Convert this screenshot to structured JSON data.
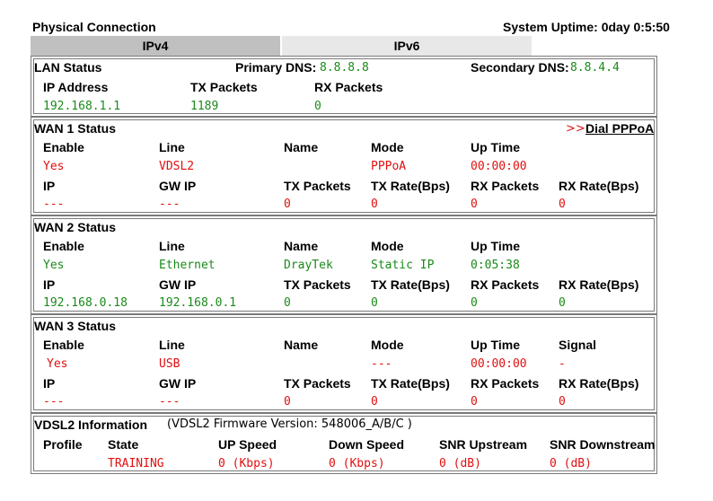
{
  "header": {
    "title": "Physical Connection",
    "uptime": "System Uptime: 0day 0:5:50"
  },
  "tabs": [
    {
      "label": "IPv4",
      "active": true
    },
    {
      "label": "IPv6",
      "active": false
    }
  ],
  "lan": {
    "title": "LAN Status",
    "primary_dns_label": "Primary DNS:",
    "primary_dns": "8.8.8.8",
    "secondary_dns_label": "Secondary DNS:",
    "secondary_dns": "8.8.4.4",
    "headers": [
      "IP Address",
      "TX Packets",
      "RX Packets"
    ],
    "values": [
      "192.168.1.1",
      "1189",
      "0"
    ]
  },
  "wan1": {
    "title": "WAN 1 Status",
    "dial_prefix": ">>",
    "dial_link": "Dial PPPoA",
    "row1_headers": [
      "Enable",
      "Line",
      "Name",
      "Mode",
      "Up Time"
    ],
    "row1_values": [
      "Yes",
      "VDSL2",
      "",
      "PPPoA",
      "00:00:00"
    ],
    "row2_headers": [
      "IP",
      "GW IP",
      "TX Packets",
      "TX Rate(Bps)",
      "RX Packets",
      "RX Rate(Bps)"
    ],
    "row2_values": [
      "---",
      "---",
      "0",
      "0",
      "0",
      "0"
    ]
  },
  "wan2": {
    "title": "WAN 2 Status",
    "row1_headers": [
      "Enable",
      "Line",
      "Name",
      "Mode",
      "Up Time"
    ],
    "row1_values": [
      "Yes",
      "Ethernet",
      "DrayTek",
      "Static IP",
      "0:05:38"
    ],
    "row2_headers": [
      "IP",
      "GW IP",
      "TX Packets",
      "TX Rate(Bps)",
      "RX Packets",
      "RX Rate(Bps)"
    ],
    "row2_values": [
      "192.168.0.18",
      "192.168.0.1",
      "0",
      "0",
      "0",
      "0"
    ]
  },
  "wan3": {
    "title": "WAN 3 Status",
    "row1_headers": [
      "Enable",
      "Line",
      "Name",
      "Mode",
      "Up Time",
      "Signal"
    ],
    "row1_values": [
      "Yes",
      "USB",
      "",
      "---",
      "00:00:00",
      "-"
    ],
    "row2_headers": [
      "IP",
      "GW IP",
      "TX Packets",
      "TX Rate(Bps)",
      "RX Packets",
      "RX Rate(Bps)"
    ],
    "row2_values": [
      "---",
      "---",
      "0",
      "0",
      "0",
      "0"
    ]
  },
  "vdsl": {
    "title": "VDSL2 Information",
    "firmware": "(VDSL2 Firmware Version:  548006_A/B/C )",
    "headers": [
      "Profile",
      "State",
      "UP Speed",
      "Down Speed",
      "SNR Upstream",
      "SNR Downstream"
    ],
    "values": [
      "",
      "TRAINING",
      "0 (Kbps)",
      "0 (Kbps)",
      "0 (dB)",
      "0 (dB)"
    ]
  },
  "colors": {
    "ok": "#1a8a1a",
    "error": "#e01010",
    "tab_active": "#c0c0c0",
    "tab_inactive": "#e8e8e8",
    "border": "#7a7a7a"
  }
}
